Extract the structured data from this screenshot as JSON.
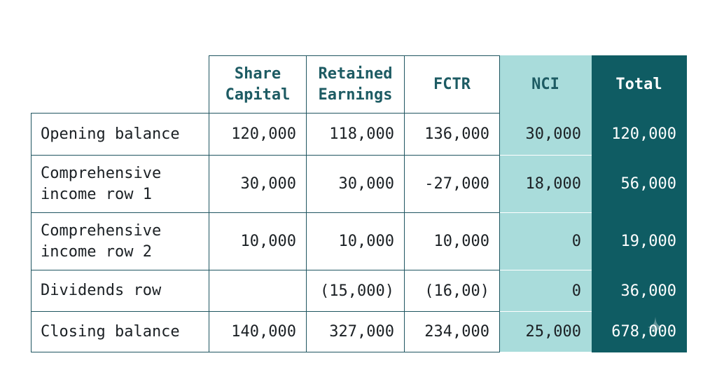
{
  "table": {
    "headers": {
      "label": "",
      "share_capital": [
        "Share",
        "Capital"
      ],
      "retained_earnings": [
        "Retained",
        "Earnings"
      ],
      "fctr": "FCTR",
      "nci": "NCI",
      "total": "Total"
    },
    "rows": [
      {
        "label": [
          "Opening balance"
        ],
        "share_capital": "120,000",
        "retained_earnings": "118,000",
        "fctr": "136,000",
        "nci": "30,000",
        "total": "120,000"
      },
      {
        "label": [
          "Comprehensive",
          "income row 1"
        ],
        "share_capital": "30,000",
        "retained_earnings": "30,000",
        "fctr": "-27,000",
        "nci": "18,000",
        "total": "56,000"
      },
      {
        "label": [
          "Comprehensive",
          "income row 2"
        ],
        "share_capital": "10,000",
        "retained_earnings": "10,000",
        "fctr": "10,000",
        "nci": "0",
        "total": "19,000"
      },
      {
        "label": [
          "Dividends row"
        ],
        "share_capital": "",
        "retained_earnings": "(15,000)",
        "fctr": "(16,00)",
        "nci": "0",
        "total": "36,000"
      },
      {
        "label": [
          "Closing balance"
        ],
        "share_capital": "140,000",
        "retained_earnings": "327,000",
        "fctr": "234,000",
        "nci": "25,000",
        "total": "678,000"
      }
    ]
  },
  "colors": {
    "border": "#1f5560",
    "header_text": "#1d5b63",
    "nci_fill": "#a9dcdb",
    "total_fill": "#0f5c63",
    "total_text": "#ffffff"
  },
  "icons": {
    "watermark": "sparkle-icon"
  }
}
